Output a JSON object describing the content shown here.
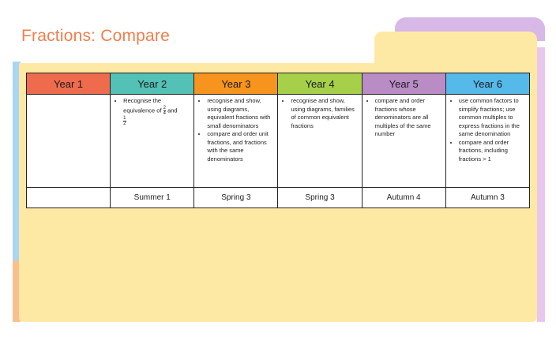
{
  "title": "Fractions: Compare",
  "colors": {
    "year1": "#ef6b4e",
    "year2": "#53c1b6",
    "year3": "#f6941d",
    "year4": "#a6d04a",
    "year5": "#b98cc6",
    "year6": "#55b9e9"
  },
  "table": {
    "headers": [
      "Year 1",
      "Year 2",
      "Year 3",
      "Year 4",
      "Year 5",
      "Year 6"
    ],
    "year2": {
      "text": "Recognise the equivalence of",
      "frac_a_num": "2",
      "frac_a_den": "4",
      "and": "and",
      "frac_b_num": "1",
      "frac_b_den": "2"
    },
    "year3": [
      "recognise and show, using diagrams, equivalent fractions with small denominators",
      "compare and order unit fractions, and fractions with the same denominators"
    ],
    "year4": [
      "recognise and show, using diagrams, families of common equivalent fractions"
    ],
    "year5": [
      "compare and order fractions whose denominators are all multiples of the same number"
    ],
    "year6": [
      "use common factors to simplify fractions; use common multiples to express fractions in the same denomination",
      "compare and order fractions, including fractions > 1"
    ],
    "terms": [
      "",
      "Summer 1",
      "Spring 3",
      "Spring 3",
      "Autumn 4",
      "Autumn 3"
    ]
  }
}
